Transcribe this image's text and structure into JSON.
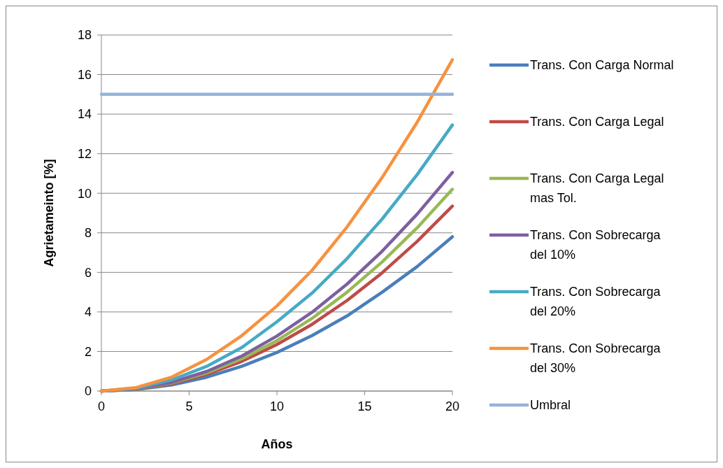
{
  "chart_data": {
    "type": "line",
    "xlabel": "Años",
    "ylabel": "Agrietameinto [%]",
    "x": [
      0,
      2,
      4,
      6,
      8,
      10,
      12,
      14,
      16,
      18,
      20
    ],
    "xlim": [
      0,
      20
    ],
    "xticks": [
      0,
      5,
      10,
      15,
      20
    ],
    "ylim": [
      0,
      18
    ],
    "yticks": [
      0,
      2,
      4,
      6,
      8,
      10,
      12,
      14,
      16,
      18
    ],
    "grid": "y",
    "legend": "right",
    "marker": "none",
    "line_style": "solid",
    "series": [
      {
        "name": "Trans. Con Carga Normal",
        "color": "#4a7ebb",
        "values": [
          0,
          0.08,
          0.31,
          0.7,
          1.25,
          1.95,
          2.8,
          3.8,
          5.0,
          6.3,
          7.8
        ]
      },
      {
        "name": "Trans. Con Carga Legal",
        "color": "#be4b48",
        "values": [
          0,
          0.09,
          0.37,
          0.84,
          1.5,
          2.35,
          3.37,
          4.58,
          5.98,
          7.57,
          9.35
        ]
      },
      {
        "name": "Trans. Con Carga Legal mas Tol.",
        "color": "#98b954",
        "values": [
          0,
          0.1,
          0.41,
          0.92,
          1.63,
          2.55,
          3.67,
          5.0,
          6.53,
          8.26,
          10.2
        ]
      },
      {
        "name": "Trans. Con Sobrecarga del 10%",
        "color": "#7d60a0",
        "values": [
          0,
          0.11,
          0.44,
          0.99,
          1.77,
          2.78,
          3.98,
          5.41,
          7.07,
          8.95,
          11.05
        ]
      },
      {
        "name": "Trans. Con Sobrecarga del 20%",
        "color": "#46aac5",
        "values": [
          0,
          0.14,
          0.56,
          1.25,
          2.2,
          3.5,
          4.95,
          6.7,
          8.7,
          10.95,
          13.45
        ]
      },
      {
        "name": "Trans. Con Sobrecarga del 30%",
        "color": "#f69240",
        "values": [
          0,
          0.18,
          0.7,
          1.6,
          2.8,
          4.3,
          6.1,
          8.3,
          10.8,
          13.6,
          16.75
        ]
      },
      {
        "name": "Umbral",
        "color": "#95b3d7",
        "values": [
          15,
          15,
          15,
          15,
          15,
          15,
          15,
          15,
          15,
          15,
          15
        ]
      }
    ]
  }
}
